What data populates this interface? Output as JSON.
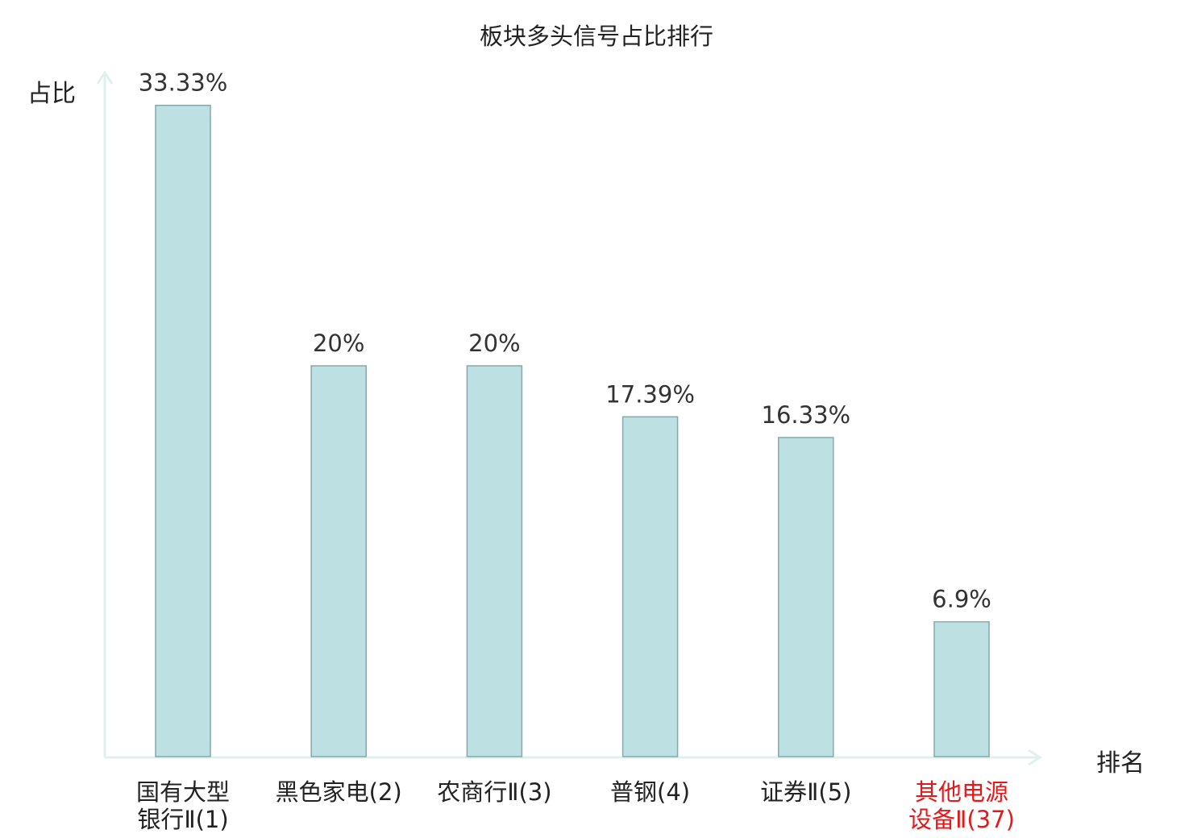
{
  "chart_data": {
    "type": "bar",
    "title": "板块多头信号占比排行",
    "ylabel": "占比",
    "xlabel": "排名",
    "categories": [
      {
        "line1": "国有大型",
        "line2": "银行Ⅱ(1)",
        "highlight": false
      },
      {
        "line1": "黑色家电(2)",
        "line2": "",
        "highlight": false
      },
      {
        "line1": "农商行Ⅱ(3)",
        "line2": "",
        "highlight": false
      },
      {
        "line1": "普钢(4)",
        "line2": "",
        "highlight": false
      },
      {
        "line1": "证券Ⅱ(5)",
        "line2": "",
        "highlight": false
      },
      {
        "line1": "其他电源",
        "line2": "设备Ⅱ(37)",
        "highlight": true
      }
    ],
    "values": [
      33.33,
      20,
      20,
      17.39,
      16.33,
      6.9
    ],
    "value_labels": [
      "33.33%",
      "20%",
      "20%",
      "17.39%",
      "16.33%",
      "6.9%"
    ],
    "ylim": [
      0,
      35
    ],
    "grid": false,
    "legend": "none",
    "colors": {
      "bar_fill": "#bde0e3",
      "bar_stroke": "#86a9ab",
      "axis": "#dff1ef",
      "label_text": "#222222",
      "value_text": "#333333",
      "highlight_text": "#e31a1c"
    }
  }
}
